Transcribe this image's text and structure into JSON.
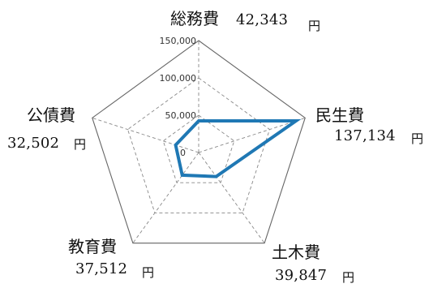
{
  "chart_data": {
    "type": "radar",
    "categories": [
      "総務費",
      "民生費",
      "土木費",
      "教育費",
      "公債費"
    ],
    "values": [
      42343,
      137134,
      39847,
      37512,
      32502
    ],
    "value_labels": [
      "42,343",
      "137,134",
      "39,847",
      "37,512",
      "32,502"
    ],
    "unit": "円",
    "tick_labels": [
      "0",
      "50,000",
      "100,000",
      "150,000"
    ],
    "rlim": [
      0,
      150000
    ],
    "grid": true,
    "series_color": "#1f78b4"
  }
}
